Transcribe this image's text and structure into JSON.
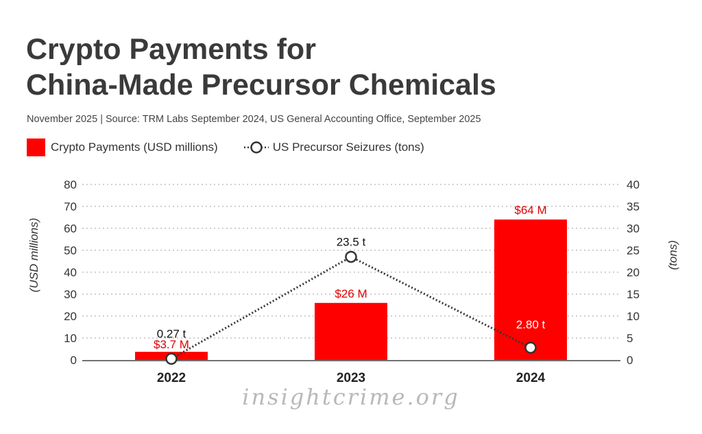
{
  "title_lines": [
    "Crypto Payments for",
    "China-Made Precursor Chemicals"
  ],
  "subtitle": "November 2025 | Source: TRM Labs September 2024, US General Accounting Office, September 2025",
  "watermark": "insightcrime.org",
  "colors": {
    "bar": "#ff0000",
    "line": "#333333",
    "label_red": "#e00000"
  },
  "chart_data": {
    "type": "bar",
    "categories": [
      "2022",
      "2023",
      "2024"
    ],
    "series": [
      {
        "name": "Crypto Payments (USD millions)",
        "type": "bar",
        "axis": "left",
        "values": [
          3.7,
          26,
          64
        ],
        "labels": [
          "$3.7 M",
          "$26 M",
          "$64 M"
        ]
      },
      {
        "name": "US Precursor Seizures (tons)",
        "type": "line",
        "axis": "right",
        "values": [
          0.27,
          23.5,
          2.8
        ],
        "labels": [
          "0.27 t",
          "23.5 t",
          "2.80 t"
        ]
      }
    ],
    "ylabel": "(USD millions)",
    "y2label": "(tons)",
    "ylim": [
      0,
      80
    ],
    "y2lim": [
      0,
      40
    ],
    "yticks": [
      "0",
      "10",
      "20",
      "30",
      "40",
      "50",
      "60",
      "70",
      "80"
    ],
    "y2ticks": [
      "0",
      "5",
      "10",
      "15",
      "20",
      "25",
      "30",
      "35",
      "40"
    ],
    "legend": "top-left",
    "grid": true
  }
}
